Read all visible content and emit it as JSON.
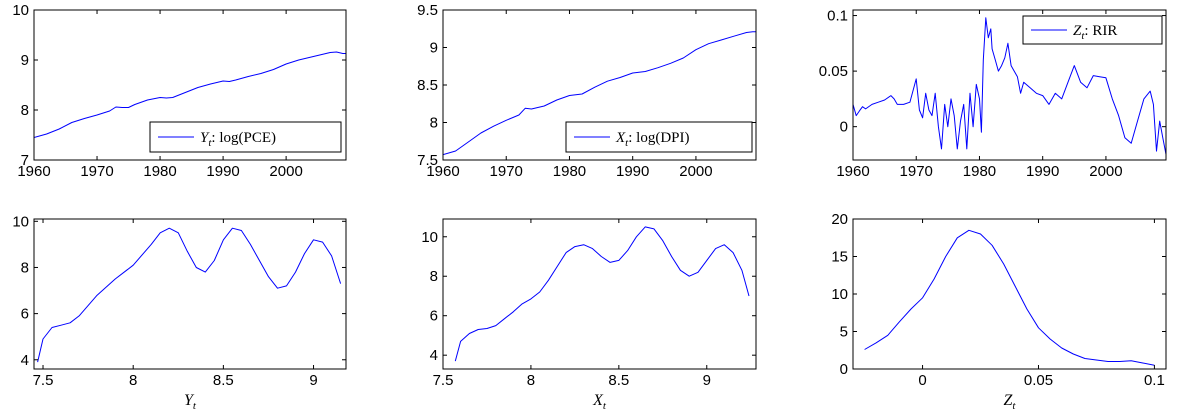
{
  "figure_title": "",
  "chart_data": [
    {
      "type": "line",
      "title": "",
      "xlabel": "",
      "ylabel": "",
      "xlim": [
        1960,
        2009.5
      ],
      "ylim": [
        7,
        10
      ],
      "xticks": [
        1960,
        1970,
        1980,
        1990,
        2000
      ],
      "xtick_labels": [
        "1960",
        "1970",
        "1980",
        "1990",
        "2000"
      ],
      "yticks": [
        7,
        8,
        9,
        10
      ],
      "ytick_labels": [
        "7",
        "8",
        "9",
        "10"
      ],
      "legend_position": "bottom-right",
      "series": [
        {
          "name": "Y_t: log(PCE)",
          "legend_var": "Y",
          "legend_sub": "t",
          "legend_rest": ": log(PCE)",
          "color": "#0000ff",
          "x": [
            1960,
            1962,
            1964,
            1966,
            1968,
            1970,
            1972,
            1973,
            1974,
            1975,
            1976,
            1978,
            1980,
            1981,
            1982,
            1984,
            1986,
            1988,
            1990,
            1991,
            1992,
            1994,
            1996,
            1998,
            2000,
            2002,
            2004,
            2006,
            2007,
            2008,
            2009,
            2009.5
          ],
          "y": [
            7.45,
            7.52,
            7.62,
            7.75,
            7.83,
            7.9,
            7.98,
            8.06,
            8.05,
            8.05,
            8.11,
            8.2,
            8.25,
            8.24,
            8.25,
            8.35,
            8.45,
            8.52,
            8.58,
            8.57,
            8.6,
            8.67,
            8.73,
            8.81,
            8.92,
            9.0,
            9.06,
            9.12,
            9.15,
            9.16,
            9.13,
            9.13
          ]
        }
      ]
    },
    {
      "type": "line",
      "title": "",
      "xlabel": "",
      "ylabel": "",
      "xlim": [
        1960,
        2009.5
      ],
      "ylim": [
        7.5,
        9.5
      ],
      "xticks": [
        1960,
        1970,
        1980,
        1990,
        2000
      ],
      "xtick_labels": [
        "1960",
        "1970",
        "1980",
        "1990",
        "2000"
      ],
      "yticks": [
        7.5,
        8,
        8.5,
        9,
        9.5
      ],
      "ytick_labels": [
        "7.5",
        "8",
        "8.5",
        "9",
        "9.5"
      ],
      "legend_position": "bottom-right",
      "series": [
        {
          "name": "X_t: log(DPI)",
          "legend_var": "X",
          "legend_sub": "t",
          "legend_rest": ": log(DPI)",
          "color": "#0000ff",
          "x": [
            1960,
            1962,
            1964,
            1966,
            1968,
            1970,
            1972,
            1973,
            1974,
            1975,
            1976,
            1978,
            1980,
            1982,
            1984,
            1986,
            1988,
            1990,
            1991,
            1992,
            1994,
            1996,
            1998,
            2000,
            2002,
            2004,
            2006,
            2008,
            2009,
            2009.5
          ],
          "y": [
            7.57,
            7.62,
            7.74,
            7.86,
            7.95,
            8.03,
            8.1,
            8.19,
            8.18,
            8.2,
            8.22,
            8.3,
            8.36,
            8.38,
            8.47,
            8.55,
            8.6,
            8.66,
            8.67,
            8.68,
            8.73,
            8.79,
            8.86,
            8.97,
            9.05,
            9.1,
            9.15,
            9.2,
            9.21,
            9.21
          ]
        }
      ]
    },
    {
      "type": "line",
      "title": "",
      "xlabel": "",
      "ylabel": "",
      "xlim": [
        1960,
        2009.5
      ],
      "ylim": [
        -0.03,
        0.105
      ],
      "xticks": [
        1960,
        1970,
        1980,
        1990,
        2000
      ],
      "xtick_labels": [
        "1960",
        "1970",
        "1980",
        "1990",
        "2000"
      ],
      "yticks": [
        0,
        0.05,
        0.1
      ],
      "ytick_labels": [
        "0",
        "0.05",
        "0.1"
      ],
      "legend_position": "top-right",
      "series": [
        {
          "name": "Z_t: RIR",
          "legend_var": "Z",
          "legend_sub": "t",
          "legend_rest": ": RIR",
          "color": "#0000ff",
          "x": [
            1960,
            1960.5,
            1961,
            1961.5,
            1962,
            1963,
            1964,
            1965,
            1966,
            1966.5,
            1967,
            1968,
            1969,
            1970,
            1970.5,
            1971,
            1971.5,
            1972,
            1972.5,
            1973,
            1973.5,
            1974,
            1974.5,
            1975,
            1975.5,
            1976,
            1976.5,
            1977,
            1977.5,
            1978,
            1978.5,
            1979,
            1979.5,
            1980,
            1980.3,
            1980.6,
            1981,
            1981.4,
            1981.8,
            1982,
            1982.5,
            1983,
            1983.5,
            1984,
            1984.5,
            1985,
            1985.5,
            1986,
            1986.5,
            1987,
            1988,
            1989,
            1990,
            1991,
            1992,
            1993,
            1994,
            1995,
            1996,
            1997,
            1998,
            1999,
            2000,
            2001,
            2002,
            2003,
            2004,
            2005,
            2006,
            2007,
            2007.5,
            2008,
            2008.5,
            2009,
            2009.5
          ],
          "y": [
            0.02,
            0.01,
            0.014,
            0.018,
            0.016,
            0.02,
            0.022,
            0.024,
            0.028,
            0.025,
            0.02,
            0.02,
            0.022,
            0.043,
            0.015,
            0.008,
            0.03,
            0.015,
            0.01,
            0.03,
            0.0,
            -0.02,
            0.02,
            0.0,
            0.025,
            0.01,
            -0.02,
            0.005,
            0.02,
            -0.02,
            0.03,
            0.0,
            0.038,
            0.025,
            -0.005,
            0.06,
            0.098,
            0.08,
            0.088,
            0.07,
            0.06,
            0.05,
            0.055,
            0.062,
            0.075,
            0.055,
            0.05,
            0.045,
            0.03,
            0.04,
            0.035,
            0.03,
            0.028,
            0.02,
            0.03,
            0.025,
            0.04,
            0.055,
            0.04,
            0.035,
            0.046,
            0.045,
            0.044,
            0.025,
            0.01,
            -0.01,
            -0.015,
            0.005,
            0.025,
            0.032,
            0.02,
            -0.022,
            0.005,
            -0.01,
            -0.025
          ]
        }
      ]
    },
    {
      "type": "line",
      "title": "",
      "xlabel": "Y_t",
      "xlabel_var": "Y",
      "xlabel_sub": "t",
      "ylabel": "",
      "xlim": [
        7.45,
        9.18
      ],
      "ylim": [
        3.6,
        10.1
      ],
      "xticks": [
        7.5,
        8,
        8.5,
        9
      ],
      "xtick_labels": [
        "7.5",
        "8",
        "8.5",
        "9"
      ],
      "yticks": [
        4,
        6,
        8,
        10
      ],
      "ytick_labels": [
        "4",
        "6",
        "8",
        "10"
      ],
      "series": [
        {
          "name": "",
          "color": "#0000ff",
          "x": [
            7.47,
            7.5,
            7.55,
            7.6,
            7.65,
            7.7,
            7.8,
            7.9,
            8.0,
            8.1,
            8.15,
            8.2,
            8.25,
            8.3,
            8.35,
            8.4,
            8.45,
            8.5,
            8.55,
            8.6,
            8.65,
            8.7,
            8.75,
            8.8,
            8.85,
            8.9,
            8.95,
            9.0,
            9.05,
            9.1,
            9.15
          ],
          "y": [
            3.9,
            4.9,
            5.4,
            5.5,
            5.6,
            5.9,
            6.8,
            7.5,
            8.1,
            9.0,
            9.5,
            9.7,
            9.5,
            8.7,
            8.0,
            7.8,
            8.3,
            9.2,
            9.7,
            9.6,
            9.0,
            8.3,
            7.6,
            7.1,
            7.2,
            7.8,
            8.6,
            9.2,
            9.1,
            8.5,
            7.3
          ]
        }
      ]
    },
    {
      "type": "line",
      "title": "",
      "xlabel": "X_t",
      "xlabel_var": "X",
      "xlabel_sub": "t",
      "ylabel": "",
      "xlim": [
        7.5,
        9.28
      ],
      "ylim": [
        3.3,
        10.9
      ],
      "xticks": [
        7.5,
        8,
        8.5,
        9
      ],
      "xtick_labels": [
        "7.5",
        "8",
        "8.5",
        "9"
      ],
      "yticks": [
        4,
        6,
        8,
        10
      ],
      "ytick_labels": [
        "4",
        "6",
        "8",
        "10"
      ],
      "series": [
        {
          "name": "",
          "color": "#0000ff",
          "x": [
            7.57,
            7.6,
            7.65,
            7.7,
            7.75,
            7.8,
            7.85,
            7.9,
            7.95,
            8.0,
            8.05,
            8.1,
            8.15,
            8.2,
            8.25,
            8.3,
            8.35,
            8.4,
            8.45,
            8.5,
            8.55,
            8.6,
            8.65,
            8.7,
            8.75,
            8.8,
            8.85,
            8.9,
            8.95,
            9.0,
            9.05,
            9.1,
            9.15,
            9.2,
            9.24
          ],
          "y": [
            3.7,
            4.7,
            5.1,
            5.3,
            5.35,
            5.5,
            5.85,
            6.2,
            6.6,
            6.85,
            7.2,
            7.8,
            8.5,
            9.2,
            9.5,
            9.6,
            9.4,
            9.0,
            8.7,
            8.8,
            9.3,
            10.0,
            10.5,
            10.4,
            9.8,
            9.0,
            8.3,
            8.0,
            8.2,
            8.8,
            9.4,
            9.6,
            9.2,
            8.3,
            7.0
          ]
        }
      ]
    },
    {
      "type": "line",
      "title": "",
      "xlabel": "Z_t",
      "xlabel_var": "Z",
      "xlabel_sub": "t",
      "ylabel": "",
      "xlim": [
        -0.03,
        0.105
      ],
      "ylim": [
        0,
        20
      ],
      "xticks": [
        0,
        0.05,
        0.1
      ],
      "xtick_labels": [
        "0",
        "0.05",
        "0.1"
      ],
      "yticks": [
        0,
        5,
        10,
        15,
        20
      ],
      "ytick_labels": [
        "0",
        "5",
        "10",
        "15",
        "20"
      ],
      "series": [
        {
          "name": "",
          "color": "#0000ff",
          "x": [
            -0.025,
            -0.02,
            -0.015,
            -0.01,
            -0.005,
            0.0,
            0.005,
            0.01,
            0.015,
            0.02,
            0.025,
            0.03,
            0.035,
            0.04,
            0.045,
            0.05,
            0.055,
            0.06,
            0.065,
            0.07,
            0.075,
            0.08,
            0.085,
            0.09,
            0.095,
            0.1
          ],
          "y": [
            2.6,
            3.5,
            4.5,
            6.3,
            8.0,
            9.5,
            12.0,
            15.0,
            17.5,
            18.5,
            18.0,
            16.5,
            14.0,
            11.0,
            8.0,
            5.5,
            4.0,
            2.8,
            2.0,
            1.4,
            1.2,
            1.0,
            1.0,
            1.1,
            0.8,
            0.5
          ]
        }
      ]
    }
  ]
}
